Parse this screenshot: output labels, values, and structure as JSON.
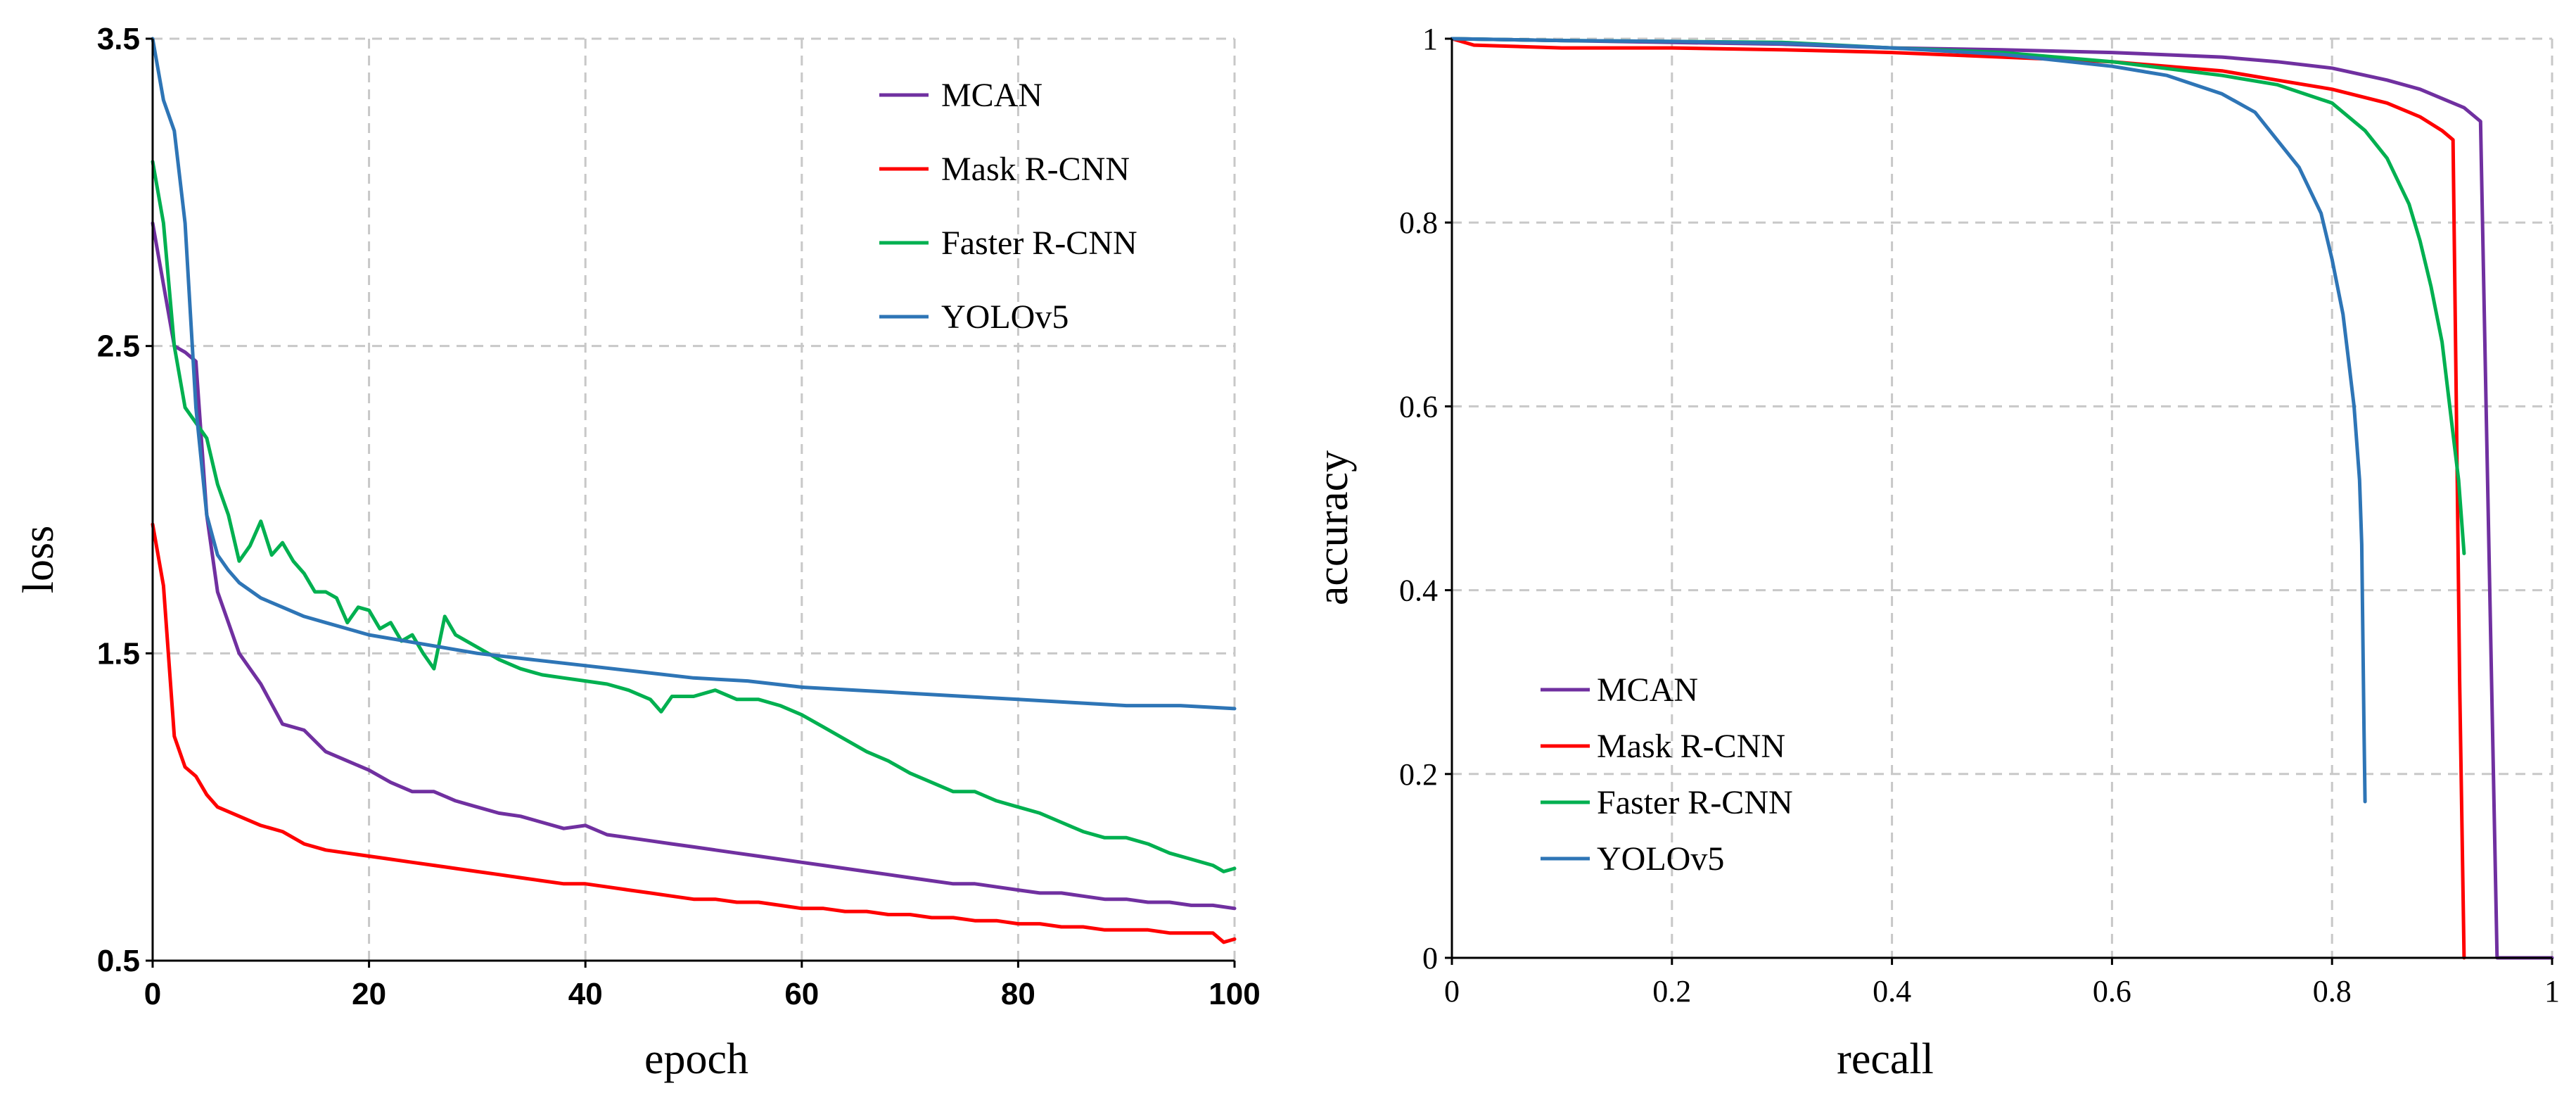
{
  "chart_data": [
    {
      "type": "line",
      "title": "",
      "xlabel": "epoch",
      "ylabel": "loss",
      "xlim": [
        0,
        100
      ],
      "ylim": [
        0.5,
        3.5
      ],
      "x_ticks": [
        "0",
        "20",
        "40",
        "60",
        "80",
        "100"
      ],
      "y_ticks": [
        "0.5",
        "1.5",
        "2.5",
        "3.5"
      ],
      "grid": true,
      "legend_position": "top-right",
      "colors": {
        "MCAN": "#7030a0",
        "Mask R-CNN": "#ff0000",
        "Faster R-CNN": "#00b050",
        "YOLOv5": "#2e75b6"
      },
      "series": [
        {
          "name": "MCAN",
          "x": [
            0,
            1,
            2,
            3,
            4,
            5,
            6,
            7,
            8,
            9,
            10,
            12,
            14,
            16,
            18,
            20,
            22,
            24,
            26,
            28,
            30,
            32,
            34,
            36,
            38,
            40,
            42,
            44,
            46,
            48,
            50,
            52,
            54,
            56,
            58,
            60,
            62,
            64,
            66,
            68,
            70,
            72,
            74,
            76,
            78,
            80,
            82,
            84,
            86,
            88,
            90,
            92,
            94,
            96,
            98,
            100
          ],
          "values": [
            2.9,
            2.7,
            2.5,
            2.48,
            2.45,
            1.95,
            1.7,
            1.6,
            1.5,
            1.45,
            1.4,
            1.27,
            1.25,
            1.18,
            1.15,
            1.12,
            1.08,
            1.05,
            1.05,
            1.02,
            1.0,
            0.98,
            0.97,
            0.95,
            0.93,
            0.94,
            0.91,
            0.9,
            0.89,
            0.88,
            0.87,
            0.86,
            0.85,
            0.84,
            0.83,
            0.82,
            0.81,
            0.8,
            0.79,
            0.78,
            0.77,
            0.76,
            0.75,
            0.75,
            0.74,
            0.73,
            0.72,
            0.72,
            0.71,
            0.7,
            0.7,
            0.69,
            0.69,
            0.68,
            0.68,
            0.67
          ]
        },
        {
          "name": "Mask R-CNN",
          "x": [
            0,
            1,
            2,
            3,
            4,
            5,
            6,
            8,
            10,
            12,
            14,
            16,
            18,
            20,
            22,
            24,
            26,
            28,
            30,
            32,
            34,
            36,
            38,
            40,
            42,
            44,
            46,
            48,
            50,
            52,
            54,
            56,
            58,
            60,
            62,
            64,
            66,
            68,
            70,
            72,
            74,
            76,
            78,
            80,
            82,
            84,
            86,
            88,
            90,
            92,
            94,
            96,
            98,
            99,
            100
          ],
          "values": [
            1.92,
            1.72,
            1.23,
            1.13,
            1.1,
            1.04,
            1.0,
            0.97,
            0.94,
            0.92,
            0.88,
            0.86,
            0.85,
            0.84,
            0.83,
            0.82,
            0.81,
            0.8,
            0.79,
            0.78,
            0.77,
            0.76,
            0.75,
            0.75,
            0.74,
            0.73,
            0.72,
            0.71,
            0.7,
            0.7,
            0.69,
            0.69,
            0.68,
            0.67,
            0.67,
            0.66,
            0.66,
            0.65,
            0.65,
            0.64,
            0.64,
            0.63,
            0.63,
            0.62,
            0.62,
            0.61,
            0.61,
            0.6,
            0.6,
            0.6,
            0.59,
            0.59,
            0.59,
            0.56,
            0.57
          ]
        },
        {
          "name": "Faster R-CNN",
          "x": [
            0,
            1,
            2,
            3,
            4,
            5,
            6,
            7,
            8,
            9,
            10,
            11,
            12,
            13,
            14,
            15,
            16,
            17,
            18,
            19,
            20,
            21,
            22,
            23,
            24,
            25,
            26,
            27,
            28,
            30,
            32,
            34,
            36,
            38,
            40,
            42,
            44,
            46,
            47,
            48,
            50,
            52,
            54,
            56,
            58,
            60,
            62,
            64,
            66,
            68,
            70,
            72,
            74,
            76,
            78,
            80,
            82,
            84,
            86,
            88,
            90,
            92,
            94,
            96,
            98,
            99,
            100
          ],
          "values": [
            3.1,
            2.9,
            2.5,
            2.3,
            2.25,
            2.2,
            2.05,
            1.95,
            1.8,
            1.85,
            1.93,
            1.82,
            1.86,
            1.8,
            1.76,
            1.7,
            1.7,
            1.68,
            1.6,
            1.65,
            1.64,
            1.58,
            1.6,
            1.54,
            1.56,
            1.5,
            1.45,
            1.62,
            1.56,
            1.52,
            1.48,
            1.45,
            1.43,
            1.42,
            1.41,
            1.4,
            1.38,
            1.35,
            1.31,
            1.36,
            1.36,
            1.38,
            1.35,
            1.35,
            1.33,
            1.3,
            1.26,
            1.22,
            1.18,
            1.15,
            1.11,
            1.08,
            1.05,
            1.05,
            1.02,
            1.0,
            0.98,
            0.95,
            0.92,
            0.9,
            0.9,
            0.88,
            0.85,
            0.83,
            0.81,
            0.79,
            0.8
          ]
        },
        {
          "name": "YOLOv5",
          "x": [
            0,
            1,
            2,
            3,
            4,
            5,
            6,
            7,
            8,
            10,
            12,
            14,
            16,
            18,
            20,
            25,
            30,
            35,
            40,
            45,
            50,
            55,
            60,
            65,
            70,
            75,
            80,
            85,
            90,
            95,
            100
          ],
          "values": [
            3.5,
            3.3,
            3.2,
            2.9,
            2.3,
            1.95,
            1.82,
            1.77,
            1.73,
            1.68,
            1.65,
            1.62,
            1.6,
            1.58,
            1.56,
            1.53,
            1.5,
            1.48,
            1.46,
            1.44,
            1.42,
            1.41,
            1.39,
            1.38,
            1.37,
            1.36,
            1.35,
            1.34,
            1.33,
            1.33,
            1.32
          ]
        }
      ]
    },
    {
      "type": "line",
      "title": "",
      "xlabel": "recall",
      "ylabel": "accuracy",
      "xlim": [
        0,
        1
      ],
      "ylim": [
        0,
        1
      ],
      "x_ticks": [
        "0",
        "0.2",
        "0.4",
        "0.6",
        "0.8",
        "1"
      ],
      "y_ticks": [
        "0",
        "0.2",
        "0.4",
        "0.6",
        "0.8",
        "1"
      ],
      "grid": true,
      "legend_position": "bottom-left",
      "colors": {
        "MCAN": "#7030a0",
        "Mask R-CNN": "#ff0000",
        "Faster R-CNN": "#00b050",
        "YOLOv5": "#2e75b6"
      },
      "series": [
        {
          "name": "MCAN",
          "x": [
            0,
            0.1,
            0.2,
            0.3,
            0.4,
            0.5,
            0.6,
            0.7,
            0.75,
            0.8,
            0.85,
            0.88,
            0.9,
            0.92,
            0.935,
            0.94,
            0.945,
            0.95,
            1.0
          ],
          "values": [
            1,
            0.998,
            0.996,
            0.994,
            0.99,
            0.988,
            0.985,
            0.98,
            0.975,
            0.968,
            0.955,
            0.945,
            0.935,
            0.925,
            0.91,
            0.6,
            0.3,
            0,
            0
          ]
        },
        {
          "name": "Mask R-CNN",
          "x": [
            0,
            0.02,
            0.1,
            0.2,
            0.3,
            0.4,
            0.5,
            0.6,
            0.7,
            0.75,
            0.8,
            0.85,
            0.88,
            0.9,
            0.91,
            0.913,
            0.916,
            0.92
          ],
          "values": [
            1,
            0.993,
            0.99,
            0.99,
            0.988,
            0.985,
            0.98,
            0.975,
            0.965,
            0.955,
            0.945,
            0.93,
            0.915,
            0.9,
            0.89,
            0.6,
            0.3,
            0
          ]
        },
        {
          "name": "Faster R-CNN",
          "x": [
            0,
            0.1,
            0.2,
            0.3,
            0.4,
            0.5,
            0.6,
            0.7,
            0.75,
            0.8,
            0.83,
            0.85,
            0.87,
            0.88,
            0.89,
            0.9,
            0.905,
            0.91,
            0.915,
            0.92
          ],
          "values": [
            1,
            0.998,
            0.997,
            0.996,
            0.99,
            0.985,
            0.975,
            0.96,
            0.95,
            0.93,
            0.9,
            0.87,
            0.82,
            0.78,
            0.73,
            0.67,
            0.62,
            0.57,
            0.52,
            0.44
          ]
        },
        {
          "name": "YOLOv5",
          "x": [
            0,
            0.1,
            0.2,
            0.3,
            0.4,
            0.5,
            0.6,
            0.65,
            0.7,
            0.73,
            0.75,
            0.77,
            0.79,
            0.8,
            0.81,
            0.815,
            0.82,
            0.825,
            0.827,
            0.828,
            0.829,
            0.83
          ],
          "values": [
            1,
            0.998,
            0.997,
            0.995,
            0.99,
            0.983,
            0.97,
            0.96,
            0.94,
            0.92,
            0.89,
            0.86,
            0.81,
            0.76,
            0.7,
            0.65,
            0.6,
            0.52,
            0.45,
            0.35,
            0.25,
            0.17
          ]
        }
      ]
    }
  ]
}
